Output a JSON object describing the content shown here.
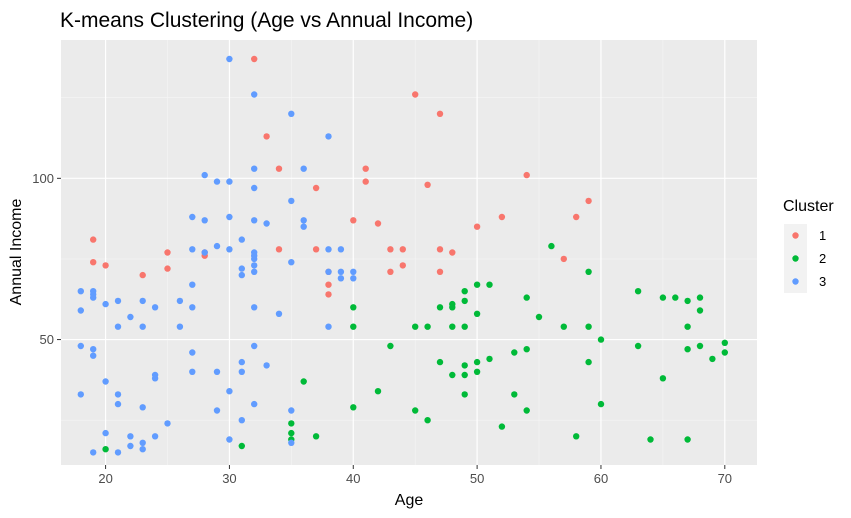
{
  "chart_data": {
    "type": "scatter",
    "title": "K-means Clustering (Age vs Annual Income)",
    "xlabel": "Age",
    "ylabel": "Annual Income",
    "xlim": [
      16.4,
      72.6
    ],
    "ylim": [
      11.1,
      142.9
    ],
    "x_ticks": [
      20,
      30,
      40,
      50,
      60,
      70
    ],
    "y_ticks": [
      50,
      100
    ],
    "grid": true,
    "legend": {
      "title": "Cluster",
      "position": "right"
    },
    "colors": {
      "panel": "#EBEBEB",
      "grid_major": "#FFFFFF",
      "grid_minor": "#F5F5F5",
      "legend_key": "#F2F2F2"
    },
    "series": [
      {
        "name": "1",
        "color": "#F8766D",
        "points": [
          [
            19,
            81
          ],
          [
            19,
            74
          ],
          [
            20,
            73
          ],
          [
            23,
            70
          ],
          [
            25,
            77
          ],
          [
            25,
            72
          ],
          [
            28,
            77
          ],
          [
            28,
            76
          ],
          [
            32,
            137
          ],
          [
            33,
            113
          ],
          [
            34,
            103
          ],
          [
            34,
            78
          ],
          [
            37,
            97
          ],
          [
            37,
            78
          ],
          [
            38,
            71
          ],
          [
            38,
            64
          ],
          [
            38,
            67
          ],
          [
            40,
            87
          ],
          [
            41,
            103
          ],
          [
            41,
            99
          ],
          [
            42,
            86
          ],
          [
            43,
            78
          ],
          [
            43,
            71
          ],
          [
            44,
            78
          ],
          [
            44,
            73
          ],
          [
            45,
            126
          ],
          [
            46,
            98
          ],
          [
            47,
            120
          ],
          [
            47,
            78
          ],
          [
            47,
            71
          ],
          [
            48,
            77
          ],
          [
            50,
            85
          ],
          [
            52,
            88
          ],
          [
            54,
            101
          ],
          [
            57,
            75
          ],
          [
            58,
            88
          ],
          [
            59,
            93
          ]
        ]
      },
      {
        "name": "2",
        "color": "#00BA38",
        "points": [
          [
            20,
            16
          ],
          [
            31,
            17
          ],
          [
            35,
            24
          ],
          [
            35,
            21
          ],
          [
            35,
            19
          ],
          [
            36,
            37
          ],
          [
            37,
            20
          ],
          [
            40,
            60
          ],
          [
            40,
            54
          ],
          [
            40,
            29
          ],
          [
            42,
            34
          ],
          [
            43,
            48
          ],
          [
            45,
            54
          ],
          [
            45,
            28
          ],
          [
            46,
            54
          ],
          [
            46,
            25
          ],
          [
            47,
            60
          ],
          [
            47,
            43
          ],
          [
            48,
            61
          ],
          [
            48,
            60
          ],
          [
            48,
            54
          ],
          [
            48,
            39
          ],
          [
            49,
            65
          ],
          [
            49,
            62
          ],
          [
            49,
            54
          ],
          [
            49,
            42
          ],
          [
            49,
            39
          ],
          [
            49,
            33
          ],
          [
            50,
            67
          ],
          [
            50,
            58
          ],
          [
            50,
            43
          ],
          [
            50,
            40
          ],
          [
            51,
            67
          ],
          [
            51,
            44
          ],
          [
            52,
            23
          ],
          [
            53,
            46
          ],
          [
            53,
            33
          ],
          [
            54,
            63
          ],
          [
            54,
            47
          ],
          [
            54,
            28
          ],
          [
            55,
            57
          ],
          [
            56,
            79
          ],
          [
            57,
            54
          ],
          [
            58,
            20
          ],
          [
            59,
            71
          ],
          [
            59,
            54
          ],
          [
            59,
            43
          ],
          [
            60,
            50
          ],
          [
            60,
            30
          ],
          [
            63,
            65
          ],
          [
            63,
            48
          ],
          [
            64,
            19
          ],
          [
            65,
            63
          ],
          [
            65,
            38
          ],
          [
            66,
            63
          ],
          [
            67,
            62
          ],
          [
            67,
            54
          ],
          [
            67,
            47
          ],
          [
            67,
            19
          ],
          [
            68,
            63
          ],
          [
            68,
            59
          ],
          [
            68,
            48
          ],
          [
            69,
            44
          ],
          [
            70,
            49
          ],
          [
            70,
            46
          ]
        ]
      },
      {
        "name": "3",
        "color": "#619CFF",
        "points": [
          [
            18,
            65
          ],
          [
            18,
            59
          ],
          [
            18,
            48
          ],
          [
            18,
            33
          ],
          [
            19,
            65
          ],
          [
            19,
            64
          ],
          [
            19,
            63
          ],
          [
            19,
            47
          ],
          [
            19,
            45
          ],
          [
            19,
            15
          ],
          [
            20,
            61
          ],
          [
            20,
            37
          ],
          [
            20,
            21
          ],
          [
            21,
            62
          ],
          [
            21,
            54
          ],
          [
            21,
            33
          ],
          [
            21,
            30
          ],
          [
            21,
            15
          ],
          [
            22,
            57
          ],
          [
            22,
            20
          ],
          [
            22,
            17
          ],
          [
            23,
            62
          ],
          [
            23,
            54
          ],
          [
            23,
            29
          ],
          [
            23,
            18
          ],
          [
            23,
            16
          ],
          [
            24,
            60
          ],
          [
            24,
            39
          ],
          [
            24,
            38
          ],
          [
            24,
            20
          ],
          [
            25,
            24
          ],
          [
            26,
            62
          ],
          [
            26,
            54
          ],
          [
            27,
            88
          ],
          [
            27,
            78
          ],
          [
            27,
            67
          ],
          [
            27,
            60
          ],
          [
            27,
            46
          ],
          [
            27,
            40
          ],
          [
            28,
            101
          ],
          [
            28,
            87
          ],
          [
            28,
            77
          ],
          [
            29,
            99
          ],
          [
            29,
            79
          ],
          [
            29,
            40
          ],
          [
            29,
            28
          ],
          [
            30,
            137
          ],
          [
            30,
            99
          ],
          [
            30,
            88
          ],
          [
            30,
            78
          ],
          [
            30,
            34
          ],
          [
            30,
            19
          ],
          [
            31,
            81
          ],
          [
            31,
            72
          ],
          [
            31,
            70
          ],
          [
            31,
            43
          ],
          [
            31,
            40
          ],
          [
            31,
            25
          ],
          [
            32,
            126
          ],
          [
            32,
            103
          ],
          [
            32,
            97
          ],
          [
            32,
            87
          ],
          [
            32,
            77
          ],
          [
            32,
            76
          ],
          [
            32,
            75
          ],
          [
            32,
            73
          ],
          [
            32,
            71
          ],
          [
            32,
            60
          ],
          [
            32,
            48
          ],
          [
            32,
            30
          ],
          [
            33,
            86
          ],
          [
            33,
            42
          ],
          [
            34,
            58
          ],
          [
            35,
            120
          ],
          [
            35,
            93
          ],
          [
            35,
            74
          ],
          [
            35,
            28
          ],
          [
            35,
            18
          ],
          [
            36,
            103
          ],
          [
            36,
            87
          ],
          [
            36,
            85
          ],
          [
            38,
            113
          ],
          [
            38,
            78
          ],
          [
            38,
            71
          ],
          [
            38,
            54
          ],
          [
            39,
            78
          ],
          [
            39,
            71
          ],
          [
            39,
            69
          ],
          [
            40,
            71
          ],
          [
            40,
            69
          ]
        ]
      }
    ]
  }
}
